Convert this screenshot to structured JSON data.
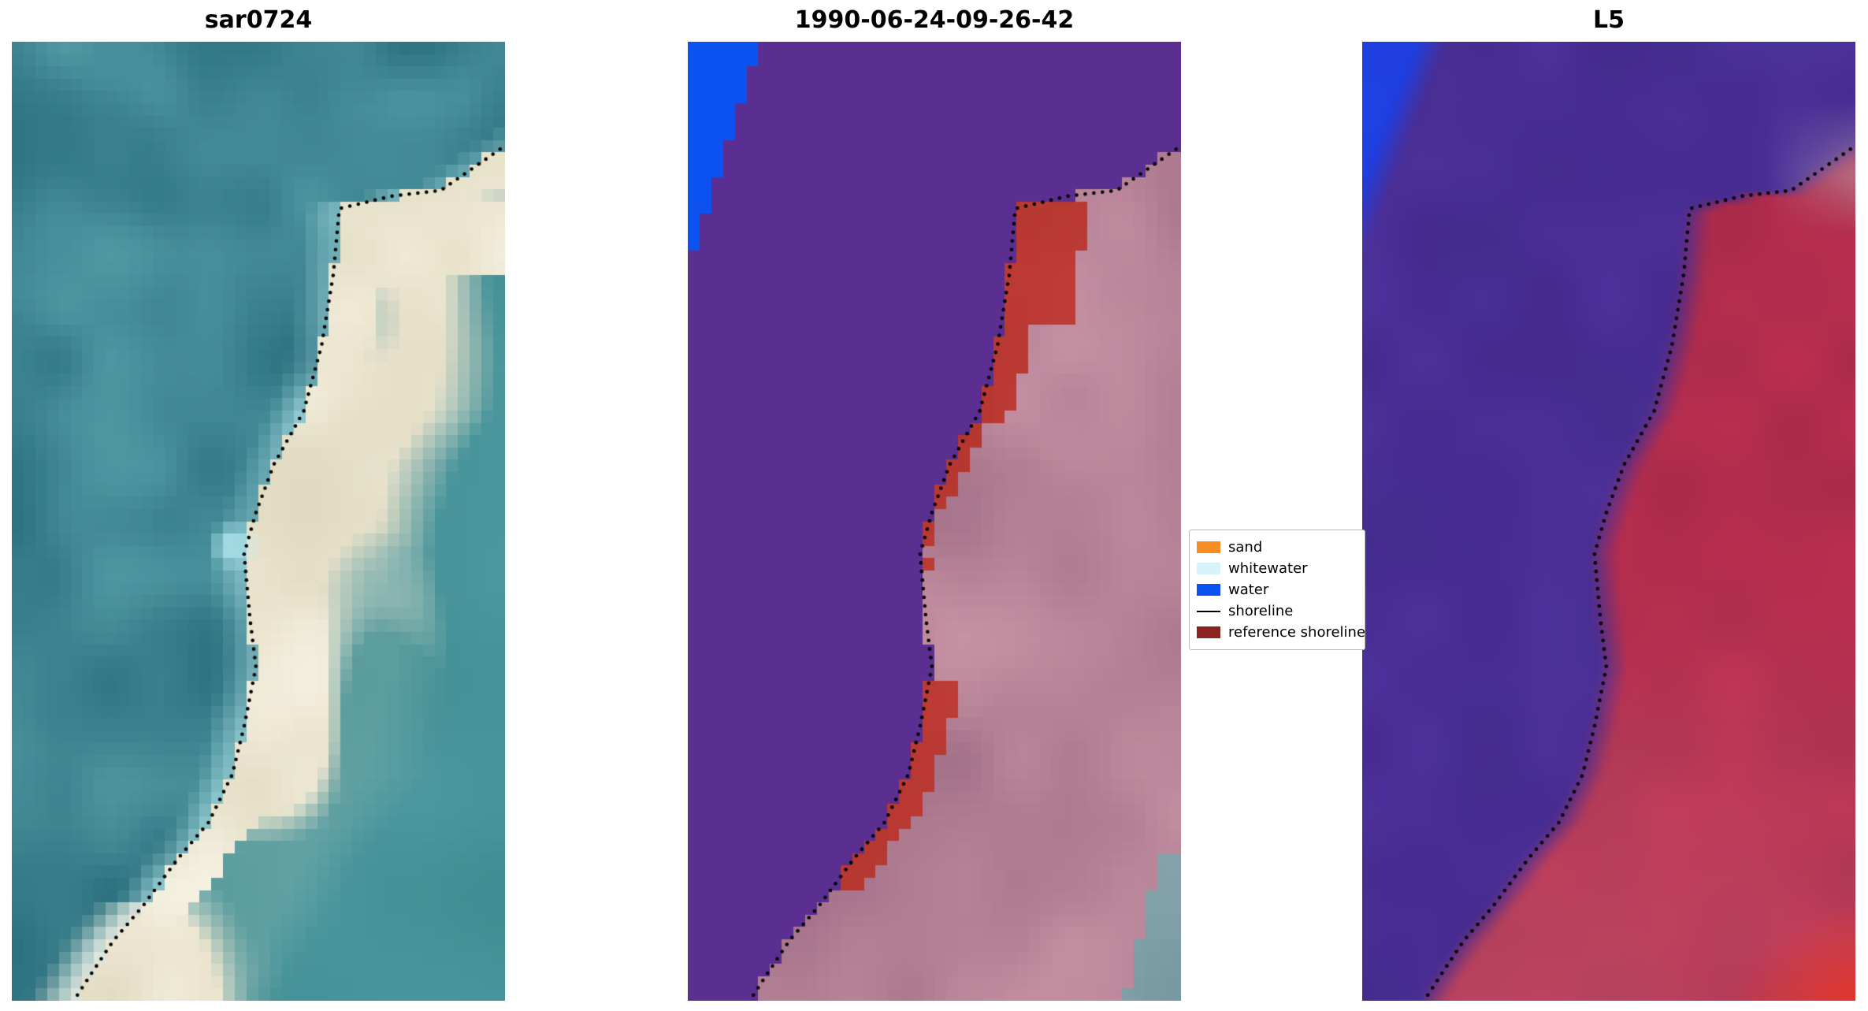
{
  "figure": {
    "background": "#ffffff",
    "panels": [
      {
        "id": "sar0724",
        "title": "sar0724",
        "kind": "sar",
        "palette": {
          "water_dark": "#16505f",
          "water": "#2e7d8c",
          "water_light": "#5aa4ad",
          "whitewater": "#c3eef2",
          "sand": "#ece4cd",
          "sand_bright": "#f8f4e6",
          "sand_dim": "#d6cfb2",
          "land_teal": "#3f8d92",
          "cyan_spot": "#bff3fb"
        }
      },
      {
        "id": "classified",
        "title": "1990-06-24-09-26-42",
        "kind": "classification",
        "palette": {
          "other": "#5b2f91",
          "water": "#0b52f0",
          "land_pink_light": "#c994a5",
          "land_pink_dark": "#91607b",
          "reference_band": "#b5352f",
          "reference_band_light": "#c9453f",
          "corner_teal": "#6f939c"
        }
      },
      {
        "id": "L5",
        "title": "L5",
        "kind": "rgb",
        "palette": {
          "water": "#4c2b96",
          "water_deep": "#3e2a86",
          "water_blue": "#5a3fb2",
          "blue": "#1b41e8",
          "land": "#c23052",
          "land_dark": "#9e2846",
          "land_deep": "#8e2240",
          "land_pink": "#cf7486",
          "hot": "#ea3120",
          "gray": "#b9a0ac"
        }
      }
    ],
    "legend": {
      "items": [
        {
          "label": "sand",
          "swatch": "rect",
          "color": "#f68e26"
        },
        {
          "label": "whitewater",
          "swatch": "rect",
          "color": "#d6f3fa"
        },
        {
          "label": "water",
          "swatch": "rect",
          "color": "#0b52f0"
        },
        {
          "label": "shoreline",
          "swatch": "line",
          "color": "#000000"
        },
        {
          "label": "reference shoreline",
          "swatch": "rect",
          "color": "#8b2420"
        }
      ]
    }
  },
  "chart_data": {
    "type": "heatmap",
    "title": "",
    "panels": [
      {
        "title": "sar0724",
        "content": "SAR backscatter image: teal water on the left, bright cream sand/beach band along the coast, small bright cyan spot mid-left of the band, black dotted detected shoreline"
      },
      {
        "title": "1990-06-24-09-26-42",
        "content": "pixel classification overlay: solid purple water-side region, bright blue water patch in top-left corner, pink land on the right, dark-red reference-shoreline band hugging the dotted shoreline, small teal patch bottom-right corner"
      },
      {
        "title": "L5",
        "content": "Landsat 5 false-colour image: mottled purple water (left), crimson/red land (right), blue patch top-left corner, bright red patch bottom-right corner, black dotted mapped shoreline"
      }
    ],
    "legend_entries": [
      "sand",
      "whitewater",
      "water",
      "shoreline",
      "reference shoreline"
    ],
    "shoreline_normalized": [
      [
        0.99,
        0.112
      ],
      [
        0.87,
        0.155
      ],
      [
        0.77,
        0.161
      ],
      [
        0.664,
        0.174
      ],
      [
        0.652,
        0.242
      ],
      [
        0.628,
        0.317
      ],
      [
        0.592,
        0.385
      ],
      [
        0.531,
        0.441
      ],
      [
        0.495,
        0.491
      ],
      [
        0.471,
        0.534
      ],
      [
        0.483,
        0.602
      ],
      [
        0.495,
        0.652
      ],
      [
        0.471,
        0.714
      ],
      [
        0.447,
        0.764
      ],
      [
        0.399,
        0.814
      ],
      [
        0.338,
        0.851
      ],
      [
        0.266,
        0.901
      ],
      [
        0.205,
        0.938
      ],
      [
        0.157,
        0.975
      ],
      [
        0.133,
        0.994
      ]
    ]
  }
}
